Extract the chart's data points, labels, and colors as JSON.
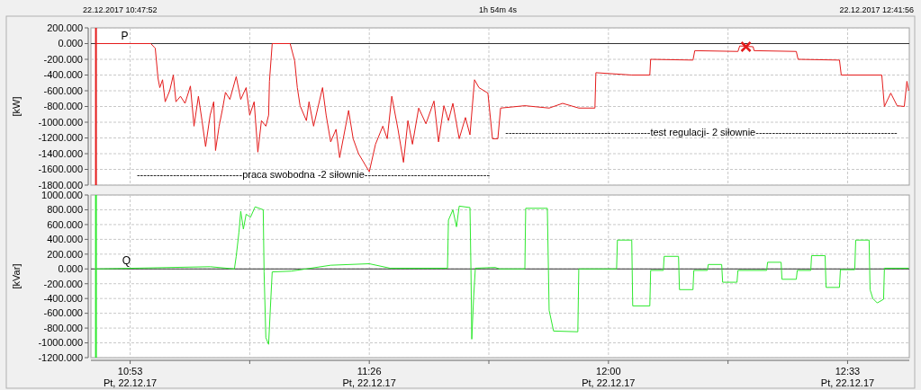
{
  "chart_data": [
    {
      "type": "line",
      "ylabel": "[kW]",
      "xlim": [
        "2017-12-22T10:47:52",
        "2017-12-22T12:41:56"
      ],
      "ylim": [
        -1800,
        200
      ],
      "tick_labels": "y",
      "grid": true,
      "xticks": [
        {
          "value": "2017-12-22T10:53:20",
          "label": null
        },
        {
          "value": "2017-12-22T11:10:00",
          "label": null
        },
        {
          "value": "2017-12-22T11:26:40",
          "label": null
        },
        {
          "value": "2017-12-22T11:43:20",
          "label": null
        },
        {
          "value": "2017-12-22T12:00:00",
          "label": null
        },
        {
          "value": "2017-12-22T12:16:40",
          "label": null
        },
        {
          "value": "2017-12-22T12:33:20",
          "label": null
        }
      ],
      "yticks": [
        {
          "value": 200,
          "label": "200.000"
        },
        {
          "value": 0,
          "label": "0.000"
        },
        {
          "value": -200,
          "label": "-200.000"
        },
        {
          "value": -400,
          "label": "-400.000"
        },
        {
          "value": -600,
          "label": "-600.000"
        },
        {
          "value": -800,
          "label": "-800.000"
        },
        {
          "value": -1000,
          "label": "-1000.000"
        },
        {
          "value": -1200,
          "label": "-1200.000"
        },
        {
          "value": -1400,
          "label": "-1400.000"
        },
        {
          "value": -1600,
          "label": "-1600.000"
        },
        {
          "value": -1800,
          "label": "-1800.000"
        }
      ],
      "ref_lines": [
        {
          "axis": "y",
          "value": 0,
          "color": "#333333"
        },
        {
          "axis": "x",
          "value": "2017-12-22T10:48:34",
          "color": "#e41b1b"
        }
      ],
      "annotations": [
        "22.12.2017 10:47:52",
        "1h 54m 4s",
        "22.12.2017 12:41:56",
        "--------------------------------praca swobodna -2 siłownie--------------------------------------",
        "--------------------------------------------test regulacji- 2 siłownie-------------------------------------------"
      ],
      "series": [
        {
          "name": "P",
          "color": "#e41b1b",
          "x": [
            "2017-12-22T10:48:34",
            "2017-12-22T10:56:13",
            "2017-12-22T10:56:50",
            "2017-12-22T10:57:13",
            "2017-12-22T10:57:28",
            "2017-12-22T10:57:51",
            "2017-12-22T10:58:13",
            "2017-12-22T10:58:51",
            "2017-12-22T10:59:21",
            "2017-12-22T10:59:43",
            "2017-12-22T11:00:21",
            "2017-12-22T11:00:59",
            "2017-12-22T11:01:44",
            "2017-12-22T11:02:14",
            "2017-12-22T11:02:51",
            "2017-12-22T11:03:21",
            "2017-12-22T11:03:51",
            "2017-12-22T11:04:29",
            "2017-12-22T11:04:59",
            "2017-12-22T11:05:14",
            "2017-12-22T11:05:44",
            "2017-12-22T11:06:14",
            "2017-12-22T11:06:37",
            "2017-12-22T11:07:14",
            "2017-12-22T11:08:07",
            "2017-12-22T11:08:45",
            "2017-12-22T11:09:30",
            "2017-12-22T11:10:00",
            "2017-12-22T11:10:37",
            "2017-12-22T11:11:08",
            "2017-12-22T11:11:38",
            "2017-12-22T11:12:15",
            "2017-12-22T11:12:38",
            "2017-12-22T11:12:45",
            "2017-12-22T11:13:08",
            "2017-12-22T11:15:38",
            "2017-12-22T11:16:16",
            "2017-12-22T11:16:38",
            "2017-12-22T11:17:01",
            "2017-12-22T11:17:54",
            "2017-12-22T11:18:16",
            "2017-12-22T11:18:54",
            "2017-12-22T11:20:09",
            "2017-12-22T11:20:39",
            "2017-12-22T11:21:17",
            "2017-12-22T11:22:02",
            "2017-12-22T11:22:32",
            "2017-12-22T11:23:47",
            "2017-12-22T11:24:25",
            "2017-12-22T11:25:10",
            "2017-12-22T11:26:40",
            "2017-12-22T11:27:32",
            "2017-12-22T11:28:33",
            "2017-12-22T11:29:10",
            "2017-12-22T11:29:48",
            "2017-12-22T11:30:40",
            "2017-12-22T11:31:26",
            "2017-12-22T11:32:03",
            "2017-12-22T11:32:41",
            "2017-12-22T11:33:33",
            "2017-12-22T11:34:34",
            "2017-12-22T11:35:41",
            "2017-12-22T11:36:19",
            "2017-12-22T11:37:04",
            "2017-12-22T11:37:42",
            "2017-12-22T11:38:19",
            "2017-12-22T11:39:12",
            "2017-12-22T11:40:04",
            "2017-12-22T11:40:42",
            "2017-12-22T11:41:20",
            "2017-12-22T11:41:57",
            "2017-12-22T11:43:12",
            "2017-12-22T11:43:50",
            "2017-12-22T11:44:35",
            "2017-12-22T11:44:58",
            "2017-12-22T11:48:21",
            "2017-12-22T11:51:44",
            "2017-12-22T11:53:37",
            "2017-12-22T11:55:52",
            "2017-12-22T11:58:07",
            "2017-12-22T11:58:15",
            "2017-12-22T12:03:15",
            "2017-12-22T12:05:46",
            "2017-12-22T12:05:53",
            "2017-12-22T12:11:47",
            "2017-12-22T12:12:02",
            "2017-12-22T12:18:03",
            "2017-12-22T12:18:18",
            "2017-12-22T12:20:10",
            "2017-12-22T12:20:18",
            "2017-12-22T12:26:11",
            "2017-12-22T12:26:26",
            "2017-12-22T12:32:12",
            "2017-12-22T12:32:27",
            "2017-12-22T12:38:06",
            "2017-12-22T12:38:28",
            "2017-12-22T12:39:21",
            "2017-12-22T12:40:14",
            "2017-12-22T12:41:14",
            "2017-12-22T12:41:36",
            "2017-12-22T12:41:51"
          ],
          "values": [
            0,
            0,
            -60,
            -440,
            -560,
            -460,
            -740,
            -600,
            -400,
            -740,
            -670,
            -760,
            -540,
            -1050,
            -670,
            -980,
            -1310,
            -910,
            -740,
            -1360,
            -1050,
            -820,
            -620,
            -710,
            -420,
            -710,
            -560,
            -910,
            -740,
            -1380,
            -980,
            -1050,
            -910,
            -480,
            0,
            0,
            -220,
            -560,
            -790,
            -980,
            -740,
            -1050,
            -560,
            -910,
            -1250,
            -1090,
            -1450,
            -850,
            -1210,
            -1400,
            -1630,
            -1280,
            -1050,
            -1210,
            -670,
            -1090,
            -1510,
            -980,
            -1280,
            -820,
            -1020,
            -730,
            -1250,
            -790,
            -980,
            -760,
            -1210,
            -940,
            -1160,
            -460,
            -560,
            -630,
            -1210,
            -1210,
            -820,
            -790,
            -820,
            -760,
            -820,
            -820,
            -370,
            -400,
            -400,
            -200,
            -210,
            -90,
            -100,
            -30,
            -40,
            -90,
            -100,
            -200,
            -210,
            -400,
            -400,
            -800,
            -630,
            -790,
            -800,
            -480,
            -600
          ]
        },
        {
          "type": "scatter",
          "marker": "cross",
          "color": "#e41b1b",
          "x": [
            "2017-12-22T12:19:10"
          ],
          "values": [
            -40
          ]
        }
      ]
    },
    {
      "type": "line",
      "ylabel": "[kVar]",
      "xlim": [
        "2017-12-22T10:47:52",
        "2017-12-22T12:41:56"
      ],
      "ylim": [
        -1200,
        1000
      ],
      "grid": true,
      "xticks": [
        {
          "value": "2017-12-22T10:53:20",
          "label": "10:53\nPt, 22.12.17"
        },
        {
          "value": "2017-12-22T11:10:00",
          "label": null
        },
        {
          "value": "2017-12-22T11:26:40",
          "label": "11:26\nPt, 22.12.17"
        },
        {
          "value": "2017-12-22T11:43:20",
          "label": null
        },
        {
          "value": "2017-12-22T12:00:00",
          "label": "12:00\nPt, 22.12.17"
        },
        {
          "value": "2017-12-22T12:16:40",
          "label": null
        },
        {
          "value": "2017-12-22T12:33:20",
          "label": "12:33\nPt, 22.12.17"
        }
      ],
      "yticks": [
        {
          "value": 1000,
          "label": "1000.000"
        },
        {
          "value": 800,
          "label": "800.000"
        },
        {
          "value": 600,
          "label": "600.000"
        },
        {
          "value": 400,
          "label": "400.000"
        },
        {
          "value": 200,
          "label": "200.000"
        },
        {
          "value": 0,
          "label": "0.000"
        },
        {
          "value": -200,
          "label": "-200.000"
        },
        {
          "value": -400,
          "label": "-400.000"
        },
        {
          "value": -600,
          "label": "-600.000"
        },
        {
          "value": -800,
          "label": "-800.000"
        },
        {
          "value": -1000,
          "label": "-1000.000"
        },
        {
          "value": -1200,
          "label": "-1200.000"
        }
      ],
      "ref_lines": [
        {
          "axis": "y",
          "value": 0,
          "color": "#333333"
        },
        {
          "axis": "x",
          "value": "2017-12-22T10:48:34",
          "color": "#2ee82e"
        }
      ],
      "series": [
        {
          "name": "Q",
          "color": "#2ee82e",
          "x": [
            "2017-12-22T10:48:42",
            "2017-12-22T11:04:29",
            "2017-12-22T11:07:52",
            "2017-12-22T11:08:07",
            "2017-12-22T11:08:30",
            "2017-12-22T11:08:45",
            "2017-12-22T11:09:07",
            "2017-12-22T11:09:30",
            "2017-12-22T11:10:07",
            "2017-12-22T11:10:45",
            "2017-12-22T11:11:53",
            "2017-12-22T11:12:00",
            "2017-12-22T11:12:15",
            "2017-12-22T11:12:38",
            "2017-12-22T11:12:53",
            "2017-12-22T11:13:08",
            "2017-12-22T11:15:46",
            "2017-12-22T11:21:17",
            "2017-12-22T11:26:40",
            "2017-12-22T11:29:33",
            "2017-12-22T11:37:34",
            "2017-12-22T11:37:42",
            "2017-12-22T11:38:19",
            "2017-12-22T11:38:49",
            "2017-12-22T11:39:12",
            "2017-12-22T11:40:42",
            "2017-12-22T11:40:50",
            "2017-12-22T11:40:57",
            "2017-12-22T11:41:12",
            "2017-12-22T11:41:27",
            "2017-12-22T11:44:13",
            "2017-12-22T11:44:50",
            "2017-12-22T11:48:21",
            "2017-12-22T11:48:28",
            "2017-12-22T11:51:29",
            "2017-12-22T11:51:44",
            "2017-12-22T11:52:21",
            "2017-12-22T11:55:44",
            "2017-12-22T11:55:52",
            "2017-12-22T12:01:08",
            "2017-12-22T12:01:15",
            "2017-12-22T12:03:15",
            "2017-12-22T12:03:23",
            "2017-12-22T12:05:46",
            "2017-12-22T12:05:53",
            "2017-12-22T12:07:39",
            "2017-12-22T12:07:46",
            "2017-12-22T12:09:46",
            "2017-12-22T12:09:54",
            "2017-12-22T12:11:47",
            "2017-12-22T12:11:54",
            "2017-12-22T12:13:47",
            "2017-12-22T12:13:55",
            "2017-12-22T12:15:47",
            "2017-12-22T12:15:55",
            "2017-12-22T12:17:55",
            "2017-12-22T12:18:03",
            "2017-12-22T12:22:03",
            "2017-12-22T12:22:11",
            "2017-12-22T12:24:04",
            "2017-12-22T12:24:11",
            "2017-12-22T12:26:11",
            "2017-12-22T12:26:19",
            "2017-12-22T12:28:12",
            "2017-12-22T12:28:19",
            "2017-12-22T12:30:12",
            "2017-12-22T12:30:20",
            "2017-12-22T12:32:12",
            "2017-12-22T12:32:20",
            "2017-12-22T12:34:20",
            "2017-12-22T12:34:28",
            "2017-12-22T12:36:20",
            "2017-12-22T12:36:28",
            "2017-12-22T12:36:51",
            "2017-12-22T12:37:28",
            "2017-12-22T12:38:21",
            "2017-12-22T12:38:28",
            "2017-12-22T12:41:51"
          ],
          "values": [
            0,
            30,
            0,
            170,
            500,
            780,
            540,
            740,
            700,
            840,
            800,
            -40,
            -930,
            -1020,
            -520,
            -40,
            -30,
            50,
            70,
            10,
            10,
            660,
            800,
            570,
            850,
            830,
            10,
            -950,
            -400,
            10,
            20,
            0,
            0,
            820,
            820,
            -560,
            -840,
            -850,
            0,
            0,
            390,
            390,
            -500,
            -500,
            -20,
            -20,
            170,
            170,
            -280,
            -280,
            -20,
            -20,
            60,
            60,
            -180,
            -180,
            -20,
            -20,
            90,
            90,
            -140,
            -140,
            -20,
            -20,
            180,
            180,
            -250,
            -250,
            -10,
            -10,
            390,
            390,
            -280,
            -400,
            -460,
            -410,
            10,
            10
          ]
        }
      ]
    }
  ]
}
